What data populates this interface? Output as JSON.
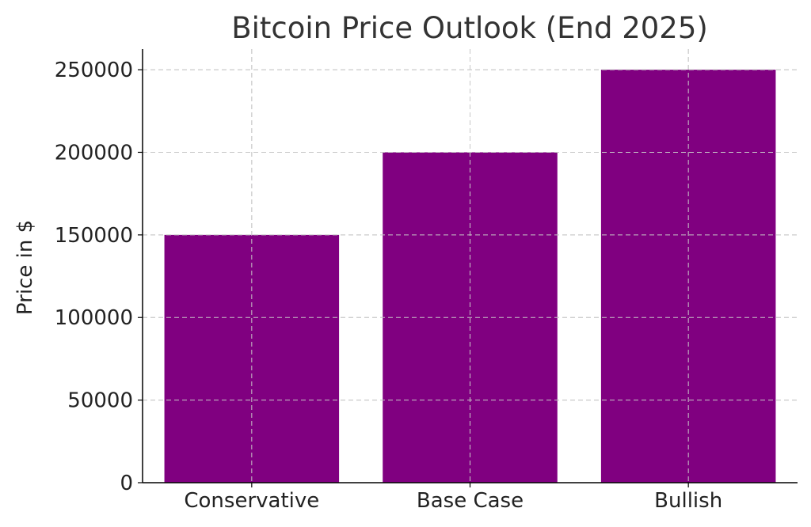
{
  "chart_data": {
    "type": "bar",
    "title": "Bitcoin Price Outlook (End 2025)",
    "xlabel": "",
    "ylabel": "Price in $",
    "categories": [
      "Conservative",
      "Base Case",
      "Bullish"
    ],
    "values": [
      150000,
      200000,
      250000
    ],
    "ylim": [
      0,
      262500
    ],
    "yticks": [
      0,
      50000,
      100000,
      150000,
      200000,
      250000
    ],
    "ytick_labels": [
      "0",
      "50000",
      "100000",
      "150000",
      "200000",
      "250000"
    ],
    "bar_color": "#800080",
    "grid": true,
    "legend": "none"
  }
}
